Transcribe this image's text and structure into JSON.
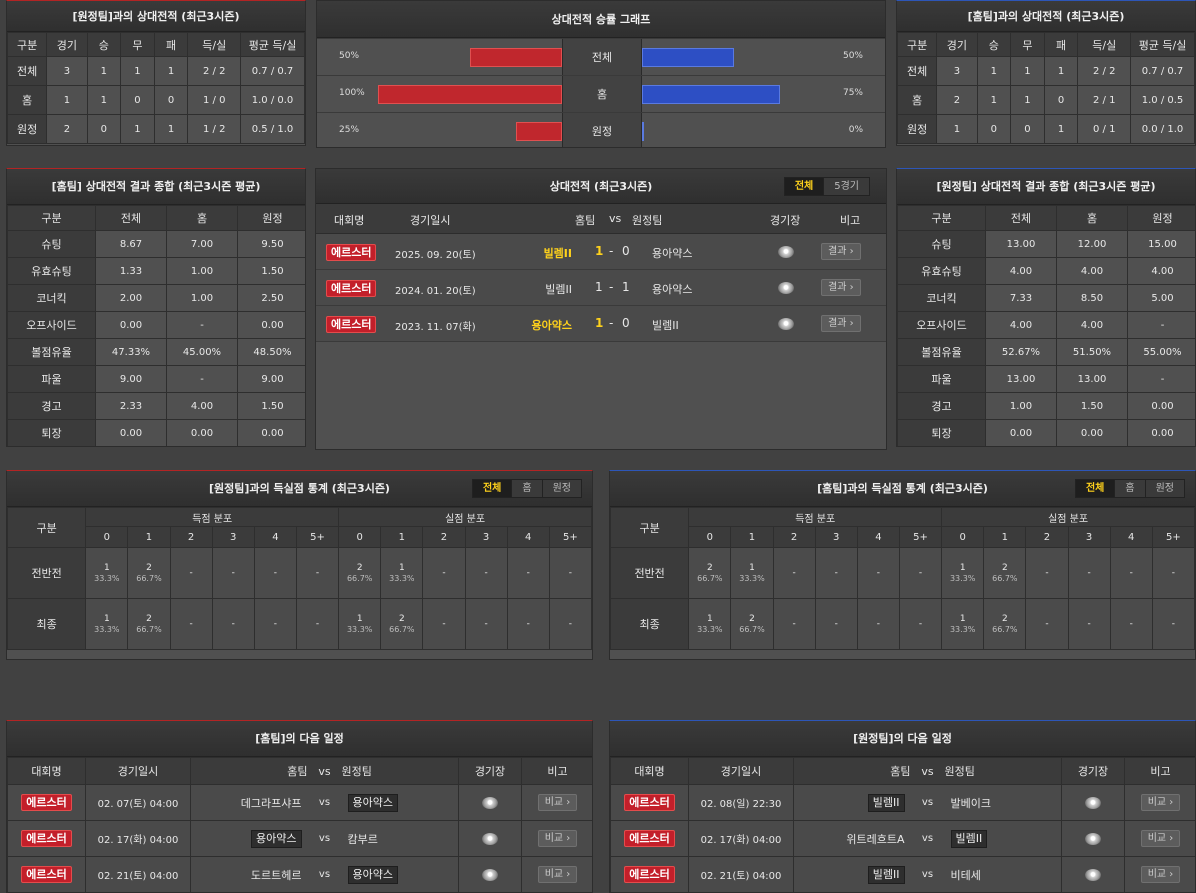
{
  "away_h2h": {
    "title": "[원정팀]과의 상대전적 (최근3시즌)",
    "headers": [
      "구분",
      "경기",
      "승",
      "무",
      "패",
      "득/실",
      "평균 득/실"
    ],
    "rows": [
      [
        "전체",
        "3",
        "1",
        "1",
        "1",
        "2 / 2",
        "0.7 / 0.7"
      ],
      [
        "홈",
        "1",
        "1",
        "0",
        "0",
        "1 / 0",
        "1.0 / 0.0"
      ],
      [
        "원정",
        "2",
        "0",
        "1",
        "1",
        "1 / 2",
        "0.5 / 1.0"
      ]
    ]
  },
  "graph": {
    "title": "상대전적 승률 그래프",
    "rows": [
      {
        "label": "전체",
        "left_text": "50%",
        "right_text": "50%",
        "left": 50,
        "right": 50
      },
      {
        "label": "홈",
        "left_text": "100%",
        "right_text": "75%",
        "left": 100,
        "right": 75
      },
      {
        "label": "원정",
        "left_text": "25%",
        "right_text": "0%",
        "left": 25,
        "right": 0
      }
    ]
  },
  "home_h2h": {
    "title": "[홈팀]과의 상대전적 (최근3시즌)",
    "headers": [
      "구분",
      "경기",
      "승",
      "무",
      "패",
      "득/실",
      "평균 득/실"
    ],
    "rows": [
      [
        "전체",
        "3",
        "1",
        "1",
        "1",
        "2 / 2",
        "0.7 / 0.7"
      ],
      [
        "홈",
        "2",
        "1",
        "1",
        "0",
        "2 / 1",
        "1.0 / 0.5"
      ],
      [
        "원정",
        "1",
        "0",
        "0",
        "1",
        "0 / 1",
        "0.0 / 1.0"
      ]
    ]
  },
  "home_summary": {
    "title": "[홈팀] 상대전적 결과 종합 (최근3시즌 평균)",
    "headers": [
      "구분",
      "전체",
      "홈",
      "원정"
    ],
    "rows": [
      [
        "슈팅",
        "8.67",
        "7.00",
        "9.50"
      ],
      [
        "유효슈팅",
        "1.33",
        "1.00",
        "1.50"
      ],
      [
        "코너킥",
        "2.00",
        "1.00",
        "2.50"
      ],
      [
        "오프사이드",
        "0.00",
        "-",
        "0.00"
      ],
      [
        "볼점유율",
        "47.33%",
        "45.00%",
        "48.50%"
      ],
      [
        "파울",
        "9.00",
        "-",
        "9.00"
      ],
      [
        "경고",
        "2.33",
        "4.00",
        "1.50"
      ],
      [
        "퇴장",
        "0.00",
        "0.00",
        "0.00"
      ]
    ]
  },
  "matches": {
    "title": "상대전적 (최근3시즌)",
    "tabs": [
      "전체",
      "5경기"
    ],
    "headers": {
      "league": "대회명",
      "date": "경기일시",
      "home": "홈팀",
      "vs": "vs",
      "away": "원정팀",
      "venue": "경기장",
      "note": "비고"
    },
    "rows": [
      {
        "league": "에르스터",
        "date": "2025. 09. 20(토)",
        "home": "빌렘II",
        "hs": "1",
        "sep": "-",
        "as": "0",
        "away": "용아약스",
        "btn": "결과 ›",
        "win": "home"
      },
      {
        "league": "에르스터",
        "date": "2024. 01. 20(토)",
        "home": "빌렘II",
        "hs": "1",
        "sep": "-",
        "as": "1",
        "away": "용아약스",
        "btn": "결과 ›",
        "win": "none"
      },
      {
        "league": "에르스터",
        "date": "2023. 11. 07(화)",
        "home": "용아약스",
        "hs": "1",
        "sep": "-",
        "as": "0",
        "away": "빌렘II",
        "btn": "결과 ›",
        "win": "home"
      }
    ]
  },
  "away_summary": {
    "title": "[원정팀] 상대전적 결과 종합 (최근3시즌 평균)",
    "headers": [
      "구분",
      "전체",
      "홈",
      "원정"
    ],
    "rows": [
      [
        "슈팅",
        "13.00",
        "12.00",
        "15.00"
      ],
      [
        "유효슈팅",
        "4.00",
        "4.00",
        "4.00"
      ],
      [
        "코너킥",
        "7.33",
        "8.50",
        "5.00"
      ],
      [
        "오프사이드",
        "4.00",
        "4.00",
        "-"
      ],
      [
        "볼점유율",
        "52.67%",
        "51.50%",
        "55.00%"
      ],
      [
        "파울",
        "13.00",
        "13.00",
        "-"
      ],
      [
        "경고",
        "1.00",
        "1.50",
        "0.00"
      ],
      [
        "퇴장",
        "0.00",
        "0.00",
        "0.00"
      ]
    ]
  },
  "goal_stats_left": {
    "title": "[원정팀]과의 득실점 통계 (최근3시즌)",
    "tabs": [
      "전체",
      "홈",
      "원정"
    ],
    "col_label": "구분",
    "group_scored": "득점 분포",
    "group_conceded": "실점 분포",
    "buckets": [
      "0",
      "1",
      "2",
      "3",
      "4",
      "5+"
    ],
    "rows": [
      {
        "label": "전반전",
        "scored": [
          [
            "1",
            "33.3%"
          ],
          [
            "2",
            "66.7%"
          ],
          [
            "-",
            ""
          ],
          [
            "-",
            ""
          ],
          [
            "-",
            ""
          ],
          [
            "-",
            ""
          ]
        ],
        "conceded": [
          [
            "2",
            "66.7%"
          ],
          [
            "1",
            "33.3%"
          ],
          [
            "-",
            ""
          ],
          [
            "-",
            ""
          ],
          [
            "-",
            ""
          ],
          [
            "-",
            ""
          ]
        ]
      },
      {
        "label": "최종",
        "scored": [
          [
            "1",
            "33.3%"
          ],
          [
            "2",
            "66.7%"
          ],
          [
            "-",
            ""
          ],
          [
            "-",
            ""
          ],
          [
            "-",
            ""
          ],
          [
            "-",
            ""
          ]
        ],
        "conceded": [
          [
            "1",
            "33.3%"
          ],
          [
            "2",
            "66.7%"
          ],
          [
            "-",
            ""
          ],
          [
            "-",
            ""
          ],
          [
            "-",
            ""
          ],
          [
            "-",
            ""
          ]
        ]
      }
    ]
  },
  "goal_stats_right": {
    "title": "[홈팀]과의 득실점 통계 (최근3시즌)",
    "tabs": [
      "전체",
      "홈",
      "원정"
    ],
    "col_label": "구분",
    "group_scored": "득점 분포",
    "group_conceded": "실점 분포",
    "buckets": [
      "0",
      "1",
      "2",
      "3",
      "4",
      "5+"
    ],
    "rows": [
      {
        "label": "전반전",
        "scored": [
          [
            "2",
            "66.7%"
          ],
          [
            "1",
            "33.3%"
          ],
          [
            "-",
            ""
          ],
          [
            "-",
            ""
          ],
          [
            "-",
            ""
          ],
          [
            "-",
            ""
          ]
        ],
        "conceded": [
          [
            "1",
            "33.3%"
          ],
          [
            "2",
            "66.7%"
          ],
          [
            "-",
            ""
          ],
          [
            "-",
            ""
          ],
          [
            "-",
            ""
          ],
          [
            "-",
            ""
          ]
        ]
      },
      {
        "label": "최종",
        "scored": [
          [
            "1",
            "33.3%"
          ],
          [
            "2",
            "66.7%"
          ],
          [
            "-",
            ""
          ],
          [
            "-",
            ""
          ],
          [
            "-",
            ""
          ],
          [
            "-",
            ""
          ]
        ],
        "conceded": [
          [
            "1",
            "33.3%"
          ],
          [
            "2",
            "66.7%"
          ],
          [
            "-",
            ""
          ],
          [
            "-",
            ""
          ],
          [
            "-",
            ""
          ],
          [
            "-",
            ""
          ]
        ]
      }
    ]
  },
  "home_next": {
    "title": "[홈팀]의 다음 일정",
    "headers": {
      "league": "대회명",
      "date": "경기일시",
      "home": "홈팀",
      "vs": "vs",
      "away": "원정팀",
      "venue": "경기장",
      "note": "비고"
    },
    "rows": [
      {
        "league": "에르스터",
        "date": "02. 07(토) 04:00",
        "home": "데그라프샤프",
        "away": "용아약스",
        "hi": "away",
        "btn": "비교 ›"
      },
      {
        "league": "에르스터",
        "date": "02. 17(화) 04:00",
        "home": "용아약스",
        "away": "캄부르",
        "hi": "home",
        "btn": "비교 ›"
      },
      {
        "league": "에르스터",
        "date": "02. 21(토) 04:00",
        "home": "도르트헤르",
        "away": "용아약스",
        "hi": "away",
        "btn": "비교 ›"
      }
    ]
  },
  "away_next": {
    "title": "[원정팀]의 다음 일정",
    "headers": {
      "league": "대회명",
      "date": "경기일시",
      "home": "홈팀",
      "vs": "vs",
      "away": "원정팀",
      "venue": "경기장",
      "note": "비고"
    },
    "rows": [
      {
        "league": "에르스터",
        "date": "02. 08(일) 22:30",
        "home": "빌렘II",
        "away": "발베이크",
        "hi": "home",
        "btn": "비교 ›"
      },
      {
        "league": "에르스터",
        "date": "02. 17(화) 04:00",
        "home": "위트레흐트A",
        "away": "빌렘II",
        "hi": "away",
        "btn": "비교 ›"
      },
      {
        "league": "에르스터",
        "date": "02. 21(토) 04:00",
        "home": "빌렘II",
        "away": "비테세",
        "hi": "home",
        "btn": "비교 ›"
      }
    ]
  }
}
